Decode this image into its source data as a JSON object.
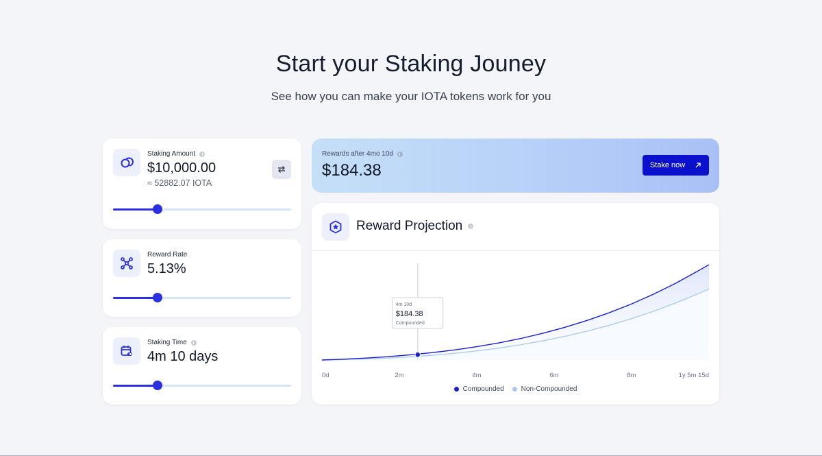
{
  "header": {
    "title": "Start your Staking Jouney",
    "subtitle": "See how you can make your IOTA tokens work for you"
  },
  "staking_amount": {
    "label": "Staking Amount",
    "value": "$10,000.00",
    "iota_equivalent": "≈ 52882.07 IOTA",
    "icon": "coins-icon",
    "swap_icon": "swap-arrows-icon",
    "slider_fraction": 0.25
  },
  "reward_rate": {
    "label": "Reward Rate",
    "value": "5.13%",
    "icon": "network-nodes-icon",
    "slider_fraction": 0.25
  },
  "staking_time": {
    "label": "Staking Time",
    "value": "4m 10 days",
    "icon": "calendar-icon",
    "slider_fraction": 0.25
  },
  "rewards": {
    "label": "Rewards after 4mo 10d",
    "value": "$184.38",
    "button_label": "Stake now",
    "button_icon": "arrow-up-right-icon"
  },
  "projection": {
    "title": "Reward Projection",
    "icon": "star-badge-icon"
  },
  "colors": {
    "accent": "#2a2fe0",
    "compounded": "#1a1fd0",
    "non_compounded": "#a9cdf0"
  },
  "chart_data": {
    "type": "line",
    "x_tick_labels": [
      "0d",
      "2m",
      "4m",
      "6m",
      "8m",
      "1y 5m 15d"
    ],
    "x": [
      0,
      1,
      2,
      3,
      4,
      5,
      6,
      7,
      8,
      9,
      10,
      11,
      12,
      13,
      14,
      15,
      16,
      17,
      17.5
    ],
    "series": [
      {
        "name": "Compounded",
        "color": "#1a1fd0",
        "values": [
          0,
          6,
          14,
          24,
          37,
          53,
          72,
          95,
          122,
          154,
          191,
          234,
          283,
          338,
          400,
          470,
          548,
          635,
          680
        ]
      },
      {
        "name": "Non-Compounded",
        "color": "#a9cdf0",
        "values": [
          0,
          3,
          8,
          14,
          23,
          34,
          48,
          65,
          85,
          109,
          137,
          169,
          206,
          248,
          295,
          348,
          407,
          472,
          507
        ]
      }
    ],
    "x_range": [
      0,
      17.5
    ],
    "y_range": [
      0,
      680
    ],
    "grid": false,
    "legend_position": "bottom-center",
    "tooltip": {
      "x": 4.33,
      "label": "4m 10d",
      "value": "$184.38",
      "series": "Compounded",
      "y": 38
    }
  }
}
